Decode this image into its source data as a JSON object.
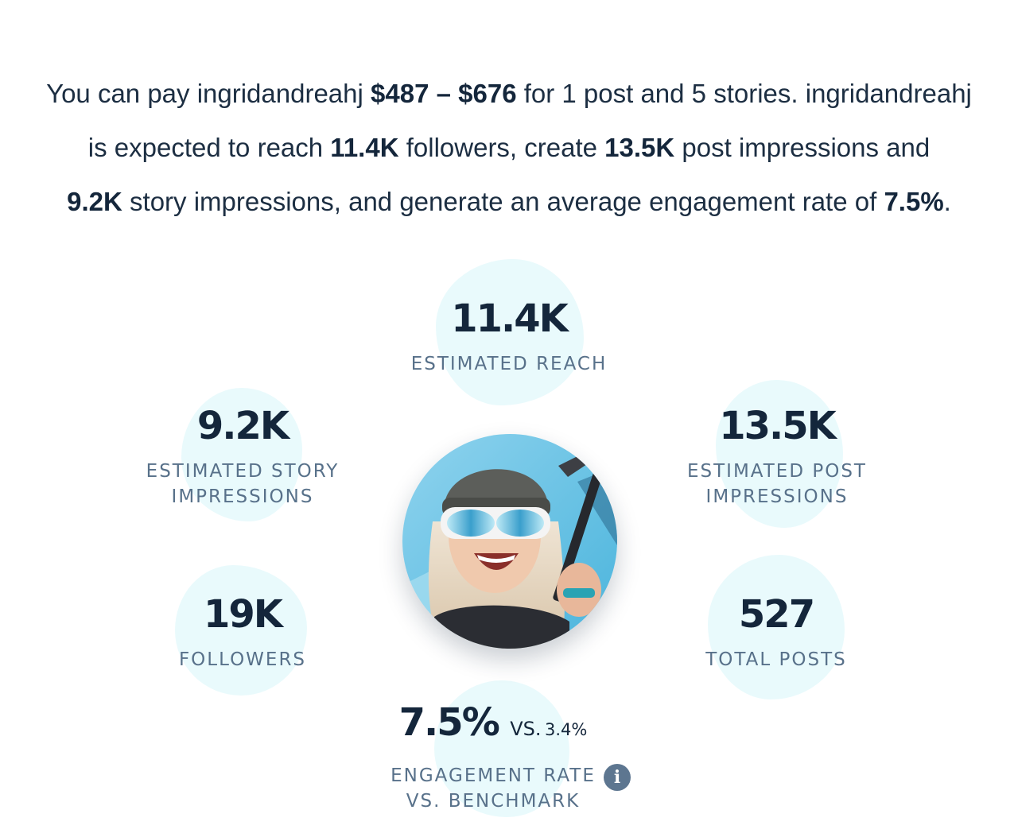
{
  "summary": {
    "l1_a": "You can pay ingridandreahj ",
    "l1_price": "$487 – $676",
    "l1_b": " for 1 post and 5 stories. ingridandreahj",
    "l2_a": "is expected to reach ",
    "l2_reach": "11.4K",
    "l2_b": " followers, create ",
    "l2_post": "13.5K",
    "l2_c": " post impressions and",
    "l3_story": "9.2K",
    "l3_a": " story impressions, and generate an average engagement rate of ",
    "l3_rate": "7.5%",
    "l3_b": "."
  },
  "stats": {
    "reach": {
      "value": "11.4K",
      "label": "ESTIMATED REACH"
    },
    "story": {
      "value": "9.2K",
      "label_1": "ESTIMATED STORY",
      "label_2": "IMPRESSIONS"
    },
    "post": {
      "value": "13.5K",
      "label_1": "ESTIMATED POST",
      "label_2": "IMPRESSIONS"
    },
    "followers": {
      "value": "19K",
      "label": "FOLLOWERS"
    },
    "posts": {
      "value": "527",
      "label": "TOTAL POSTS"
    },
    "engagement": {
      "value": "7.5%",
      "vs_label": "VS.",
      "benchmark": "3.4%",
      "label_1": "ENGAGEMENT RATE",
      "label_2": "VS. BENCHMARK"
    }
  },
  "icons": {
    "info": "info-icon",
    "info_glyph": "i"
  },
  "colors": {
    "text": "#14263b",
    "label": "#58718a",
    "blob": "#e9fafc",
    "info": "#5d7690"
  }
}
